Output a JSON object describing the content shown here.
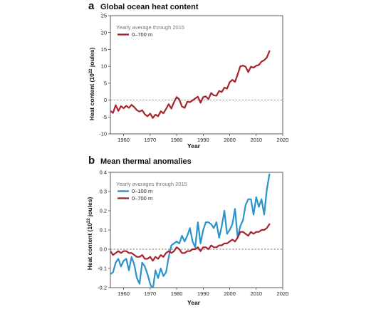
{
  "colors": {
    "red": "#a8232b",
    "blue": "#2a93cc"
  },
  "chart_data": [
    {
      "panel_letter": "a",
      "title": "Global ocean heat content",
      "type": "line",
      "xlabel": "Year",
      "ylabel_prefix": "Heat content (10",
      "ylabel_exp": "22",
      "ylabel_suffix": " joules)",
      "xlim": [
        1955,
        2020
      ],
      "ylim": [
        -10,
        25
      ],
      "xticks": [
        1960,
        1970,
        1980,
        1990,
        2000,
        2010,
        2020
      ],
      "yticks": [
        -10,
        -5,
        0,
        5,
        10,
        15,
        20,
        25
      ],
      "grid": false,
      "zero_line": true,
      "legend": {
        "position": "top-left",
        "title": "Yearly average through 2015"
      },
      "x": [
        1955,
        1956,
        1957,
        1958,
        1959,
        1960,
        1961,
        1962,
        1963,
        1964,
        1965,
        1966,
        1967,
        1968,
        1969,
        1970,
        1971,
        1972,
        1973,
        1974,
        1975,
        1976,
        1977,
        1978,
        1979,
        1980,
        1981,
        1982,
        1983,
        1984,
        1985,
        1986,
        1987,
        1988,
        1989,
        1990,
        1991,
        1992,
        1993,
        1994,
        1995,
        1996,
        1997,
        1998,
        1999,
        2000,
        2001,
        2002,
        2003,
        2004,
        2005,
        2006,
        2007,
        2008,
        2009,
        2010,
        2011,
        2012,
        2013,
        2014,
        2015
      ],
      "series": [
        {
          "name": "0–700 m",
          "color": "#a8232b",
          "values": [
            -3.2,
            -3.8,
            -1.5,
            -3.2,
            -1.8,
            -2.4,
            -1.7,
            -2.3,
            -1.4,
            -2.1,
            -3.0,
            -3.4,
            -3.0,
            -4.2,
            -4.8,
            -4.0,
            -5.3,
            -4.3,
            -4.8,
            -3.3,
            -3.9,
            -2.6,
            -1.2,
            -2.5,
            -0.6,
            0.9,
            0.2,
            -1.9,
            -2.3,
            -0.5,
            -0.6,
            -0.1,
            0.5,
            1.0,
            -0.8,
            0.9,
            1.1,
            0.3,
            2.1,
            1.4,
            1.3,
            2.7,
            2.4,
            3.7,
            3.4,
            5.3,
            6.0,
            5.4,
            7.6,
            10.0,
            10.2,
            9.9,
            8.3,
            9.9,
            9.6,
            10.2,
            10.4,
            11.4,
            11.8,
            12.6,
            14.5
          ]
        }
      ]
    },
    {
      "panel_letter": "b",
      "title": "Mean thermal anomalies",
      "type": "line",
      "xlabel": "Year",
      "ylabel_prefix": "Heat content (10",
      "ylabel_exp": "22",
      "ylabel_suffix": " joules)",
      "xlim": [
        1955,
        2020
      ],
      "ylim": [
        -0.2,
        0.4
      ],
      "xticks": [
        1960,
        1970,
        1980,
        1990,
        2000,
        2010,
        2020
      ],
      "yticks": [
        -0.2,
        -0.1,
        0.0,
        0.1,
        0.2,
        0.3,
        0.4
      ],
      "ytick_labels": [
        "-0.2",
        "-0.1",
        "0.0",
        "0.1",
        "0.2",
        "0.3",
        "0.4"
      ],
      "grid": false,
      "zero_line": true,
      "legend": {
        "position": "top-left",
        "title": "Yearly averages through 2015"
      },
      "x": [
        1955,
        1956,
        1957,
        1958,
        1959,
        1960,
        1961,
        1962,
        1963,
        1964,
        1965,
        1966,
        1967,
        1968,
        1969,
        1970,
        1971,
        1972,
        1973,
        1974,
        1975,
        1976,
        1977,
        1978,
        1979,
        1980,
        1981,
        1982,
        1983,
        1984,
        1985,
        1986,
        1987,
        1988,
        1989,
        1990,
        1991,
        1992,
        1993,
        1994,
        1995,
        1996,
        1997,
        1998,
        1999,
        2000,
        2001,
        2002,
        2003,
        2004,
        2005,
        2006,
        2007,
        2008,
        2009,
        2010,
        2011,
        2012,
        2013,
        2014,
        2015
      ],
      "series": [
        {
          "name": "0–100 m",
          "color": "#2a93cc",
          "values": [
            -0.13,
            -0.12,
            -0.07,
            -0.05,
            -0.09,
            -0.06,
            -0.05,
            -0.11,
            -0.04,
            -0.08,
            -0.15,
            -0.18,
            -0.07,
            -0.09,
            -0.13,
            -0.18,
            -0.21,
            -0.11,
            -0.15,
            -0.1,
            -0.14,
            -0.12,
            -0.04,
            0.02,
            0.03,
            0.04,
            0.03,
            0.07,
            0.04,
            0.07,
            0.11,
            0.04,
            0.01,
            0.14,
            0.03,
            0.1,
            0.14,
            0.14,
            0.13,
            0.11,
            0.14,
            0.06,
            0.12,
            0.2,
            0.08,
            0.1,
            0.13,
            0.21,
            0.06,
            0.12,
            0.15,
            0.23,
            0.26,
            0.26,
            0.18,
            0.27,
            0.22,
            0.26,
            0.18,
            0.31,
            0.39
          ]
        },
        {
          "name": "0–700 m",
          "color": "#a8232b",
          "values": [
            -0.01,
            -0.03,
            -0.02,
            -0.01,
            -0.02,
            -0.01,
            -0.01,
            -0.02,
            -0.02,
            -0.03,
            -0.04,
            -0.04,
            -0.03,
            -0.05,
            -0.05,
            -0.04,
            -0.06,
            -0.04,
            -0.05,
            -0.03,
            -0.04,
            -0.02,
            -0.01,
            -0.02,
            -0.01,
            0.01,
            0.0,
            -0.02,
            -0.02,
            -0.01,
            -0.01,
            -0.0,
            0.0,
            0.01,
            -0.01,
            0.01,
            0.01,
            0.0,
            0.02,
            0.01,
            0.01,
            0.02,
            0.02,
            0.03,
            0.03,
            0.04,
            0.05,
            0.04,
            0.06,
            0.09,
            0.09,
            0.08,
            0.07,
            0.09,
            0.08,
            0.09,
            0.09,
            0.1,
            0.1,
            0.11,
            0.13
          ]
        }
      ]
    }
  ]
}
